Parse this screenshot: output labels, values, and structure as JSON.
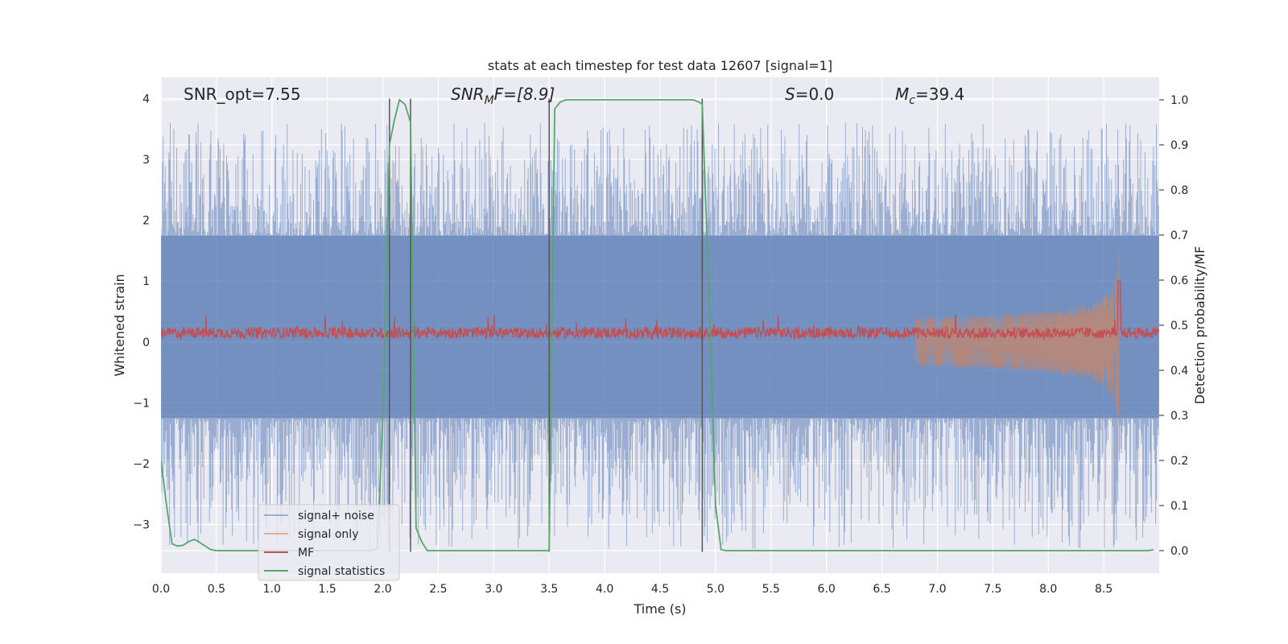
{
  "chart_data": {
    "type": "line",
    "title": "stats at each timestep for test data 12607 [signal=1]",
    "xlabel": "Time (s)",
    "ylabel": "Whitened strain",
    "y2label": "Detection probability/MF",
    "xlim": [
      0,
      9
    ],
    "ylim": [
      -3.8,
      4.35
    ],
    "y2lim": [
      -0.05,
      1.05
    ],
    "xticks": [
      0.0,
      0.5,
      1.0,
      1.5,
      2.0,
      2.5,
      3.0,
      3.5,
      4.0,
      4.5,
      5.0,
      5.5,
      6.0,
      6.5,
      7.0,
      7.5,
      8.0,
      8.5
    ],
    "yticks": [
      -3,
      -2,
      -1,
      0,
      1,
      2,
      3,
      4
    ],
    "y2ticks": [
      0.0,
      0.1,
      0.2,
      0.3,
      0.4,
      0.5,
      0.6,
      0.7,
      0.8,
      0.9,
      1.0
    ],
    "xtick_labels": [
      "0.0",
      "0.5",
      "1.0",
      "1.5",
      "2.0",
      "2.5",
      "3.0",
      "3.5",
      "4.0",
      "4.5",
      "5.0",
      "5.5",
      "6.0",
      "6.5",
      "7.0",
      "7.5",
      "8.0",
      "8.5"
    ],
    "ytick_labels": [
      "−3",
      "−2",
      "−1",
      "0",
      "1",
      "2",
      "3",
      "4"
    ],
    "y2tick_labels": [
      "0.0",
      "0.1",
      "0.2",
      "0.3",
      "0.4",
      "0.5",
      "0.6",
      "0.7",
      "0.8",
      "0.9",
      "1.0"
    ],
    "grid": true,
    "legend_position": "lower-left",
    "colors": {
      "noise": "#4c72b0",
      "signal": "#dd8452",
      "mf": "#c44e52",
      "stats": "#55a868",
      "vlines": "#555555",
      "background": "#eaeaf2"
    },
    "annotations": [
      {
        "text": "SNR_opt=7.55"
      },
      {
        "text": "SNR",
        "sub": "M",
        "suffix": "F=[8.9]"
      },
      {
        "text": "S",
        "suffix": "=0.0"
      },
      {
        "text": "M",
        "sub": "c",
        "suffix": "=39.4"
      }
    ],
    "vertical_lines_x": [
      2.06,
      2.25,
      3.5,
      4.88
    ],
    "legend": [
      "signal+ noise",
      "signal only",
      "MF",
      "signal statistics"
    ],
    "series": [
      {
        "name": "signal+ noise",
        "kind": "noise_band",
        "core_range": [
          -1.25,
          1.75
        ],
        "peak_range": [
          -3.4,
          3.6
        ]
      },
      {
        "name": "signal only",
        "kind": "chirp",
        "merger_time": 8.64,
        "peak_amplitude": 2.0
      },
      {
        "name": "MF",
        "kind": "noise_band",
        "center": 0.15,
        "range": [
          0.0,
          0.35
        ]
      },
      {
        "name": "signal statistics",
        "x": [
          0.0,
          0.05,
          0.1,
          0.15,
          0.2,
          0.25,
          0.3,
          0.35,
          0.4,
          0.45,
          0.5,
          1.9,
          1.95,
          2.0,
          2.06,
          2.1,
          2.15,
          2.2,
          2.25,
          2.3,
          2.35,
          2.4,
          3.45,
          3.5,
          3.55,
          3.6,
          3.65,
          4.8,
          4.85,
          4.88,
          4.95,
          5.0,
          5.05,
          5.1,
          8.9,
          8.95
        ],
        "y": [
          0.2,
          0.1,
          0.015,
          0.01,
          0.012,
          0.02,
          0.025,
          0.018,
          0.01,
          0.002,
          0.0,
          0.0,
          0.005,
          0.3,
          0.9,
          0.95,
          1.0,
          0.99,
          0.95,
          0.05,
          0.02,
          0.0,
          0.0,
          0.0,
          0.98,
          0.995,
          1.0,
          1.0,
          0.995,
          0.99,
          0.5,
          0.1,
          0.002,
          0.0,
          0.0,
          0.002
        ]
      }
    ]
  }
}
